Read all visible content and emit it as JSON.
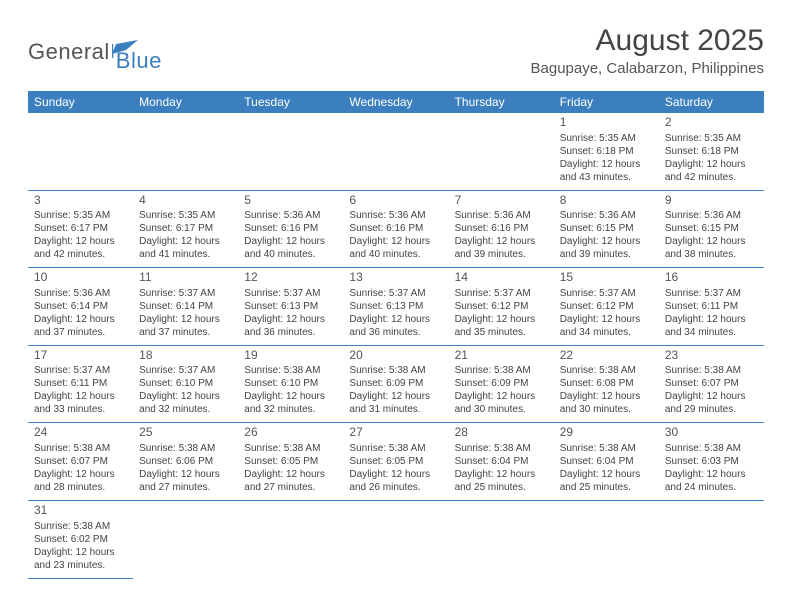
{
  "brand": {
    "text1": "General",
    "text2": "Blue",
    "icon_color": "#3c7fbf"
  },
  "header": {
    "title": "August 2025",
    "subtitle": "Bagupaye, Calabarzon, Philippines"
  },
  "colors": {
    "header_bg": "#3c7fbf",
    "header_text": "#ffffff",
    "cell_border": "#3c7fbf",
    "body_text": "#444444",
    "background": "#ffffff"
  },
  "typography": {
    "title_fontsize": 30,
    "subtitle_fontsize": 15,
    "dayheader_fontsize": 12,
    "daynum_fontsize": 12,
    "cell_fontsize": 10
  },
  "calendar": {
    "day_headers": [
      "Sunday",
      "Monday",
      "Tuesday",
      "Wednesday",
      "Thursday",
      "Friday",
      "Saturday"
    ],
    "first_weekday_index": 5,
    "num_days": 31,
    "days": {
      "1": {
        "sunrise": "5:35 AM",
        "sunset": "6:18 PM",
        "daylight": "12 hours and 43 minutes."
      },
      "2": {
        "sunrise": "5:35 AM",
        "sunset": "6:18 PM",
        "daylight": "12 hours and 42 minutes."
      },
      "3": {
        "sunrise": "5:35 AM",
        "sunset": "6:17 PM",
        "daylight": "12 hours and 42 minutes."
      },
      "4": {
        "sunrise": "5:35 AM",
        "sunset": "6:17 PM",
        "daylight": "12 hours and 41 minutes."
      },
      "5": {
        "sunrise": "5:36 AM",
        "sunset": "6:16 PM",
        "daylight": "12 hours and 40 minutes."
      },
      "6": {
        "sunrise": "5:36 AM",
        "sunset": "6:16 PM",
        "daylight": "12 hours and 40 minutes."
      },
      "7": {
        "sunrise": "5:36 AM",
        "sunset": "6:16 PM",
        "daylight": "12 hours and 39 minutes."
      },
      "8": {
        "sunrise": "5:36 AM",
        "sunset": "6:15 PM",
        "daylight": "12 hours and 39 minutes."
      },
      "9": {
        "sunrise": "5:36 AM",
        "sunset": "6:15 PM",
        "daylight": "12 hours and 38 minutes."
      },
      "10": {
        "sunrise": "5:36 AM",
        "sunset": "6:14 PM",
        "daylight": "12 hours and 37 minutes."
      },
      "11": {
        "sunrise": "5:37 AM",
        "sunset": "6:14 PM",
        "daylight": "12 hours and 37 minutes."
      },
      "12": {
        "sunrise": "5:37 AM",
        "sunset": "6:13 PM",
        "daylight": "12 hours and 36 minutes."
      },
      "13": {
        "sunrise": "5:37 AM",
        "sunset": "6:13 PM",
        "daylight": "12 hours and 36 minutes."
      },
      "14": {
        "sunrise": "5:37 AM",
        "sunset": "6:12 PM",
        "daylight": "12 hours and 35 minutes."
      },
      "15": {
        "sunrise": "5:37 AM",
        "sunset": "6:12 PM",
        "daylight": "12 hours and 34 minutes."
      },
      "16": {
        "sunrise": "5:37 AM",
        "sunset": "6:11 PM",
        "daylight": "12 hours and 34 minutes."
      },
      "17": {
        "sunrise": "5:37 AM",
        "sunset": "6:11 PM",
        "daylight": "12 hours and 33 minutes."
      },
      "18": {
        "sunrise": "5:37 AM",
        "sunset": "6:10 PM",
        "daylight": "12 hours and 32 minutes."
      },
      "19": {
        "sunrise": "5:38 AM",
        "sunset": "6:10 PM",
        "daylight": "12 hours and 32 minutes."
      },
      "20": {
        "sunrise": "5:38 AM",
        "sunset": "6:09 PM",
        "daylight": "12 hours and 31 minutes."
      },
      "21": {
        "sunrise": "5:38 AM",
        "sunset": "6:09 PM",
        "daylight": "12 hours and 30 minutes."
      },
      "22": {
        "sunrise": "5:38 AM",
        "sunset": "6:08 PM",
        "daylight": "12 hours and 30 minutes."
      },
      "23": {
        "sunrise": "5:38 AM",
        "sunset": "6:07 PM",
        "daylight": "12 hours and 29 minutes."
      },
      "24": {
        "sunrise": "5:38 AM",
        "sunset": "6:07 PM",
        "daylight": "12 hours and 28 minutes."
      },
      "25": {
        "sunrise": "5:38 AM",
        "sunset": "6:06 PM",
        "daylight": "12 hours and 27 minutes."
      },
      "26": {
        "sunrise": "5:38 AM",
        "sunset": "6:05 PM",
        "daylight": "12 hours and 27 minutes."
      },
      "27": {
        "sunrise": "5:38 AM",
        "sunset": "6:05 PM",
        "daylight": "12 hours and 26 minutes."
      },
      "28": {
        "sunrise": "5:38 AM",
        "sunset": "6:04 PM",
        "daylight": "12 hours and 25 minutes."
      },
      "29": {
        "sunrise": "5:38 AM",
        "sunset": "6:04 PM",
        "daylight": "12 hours and 25 minutes."
      },
      "30": {
        "sunrise": "5:38 AM",
        "sunset": "6:03 PM",
        "daylight": "12 hours and 24 minutes."
      },
      "31": {
        "sunrise": "5:38 AM",
        "sunset": "6:02 PM",
        "daylight": "12 hours and 23 minutes."
      }
    },
    "labels": {
      "sunrise": "Sunrise:",
      "sunset": "Sunset:",
      "daylight": "Daylight:"
    }
  }
}
